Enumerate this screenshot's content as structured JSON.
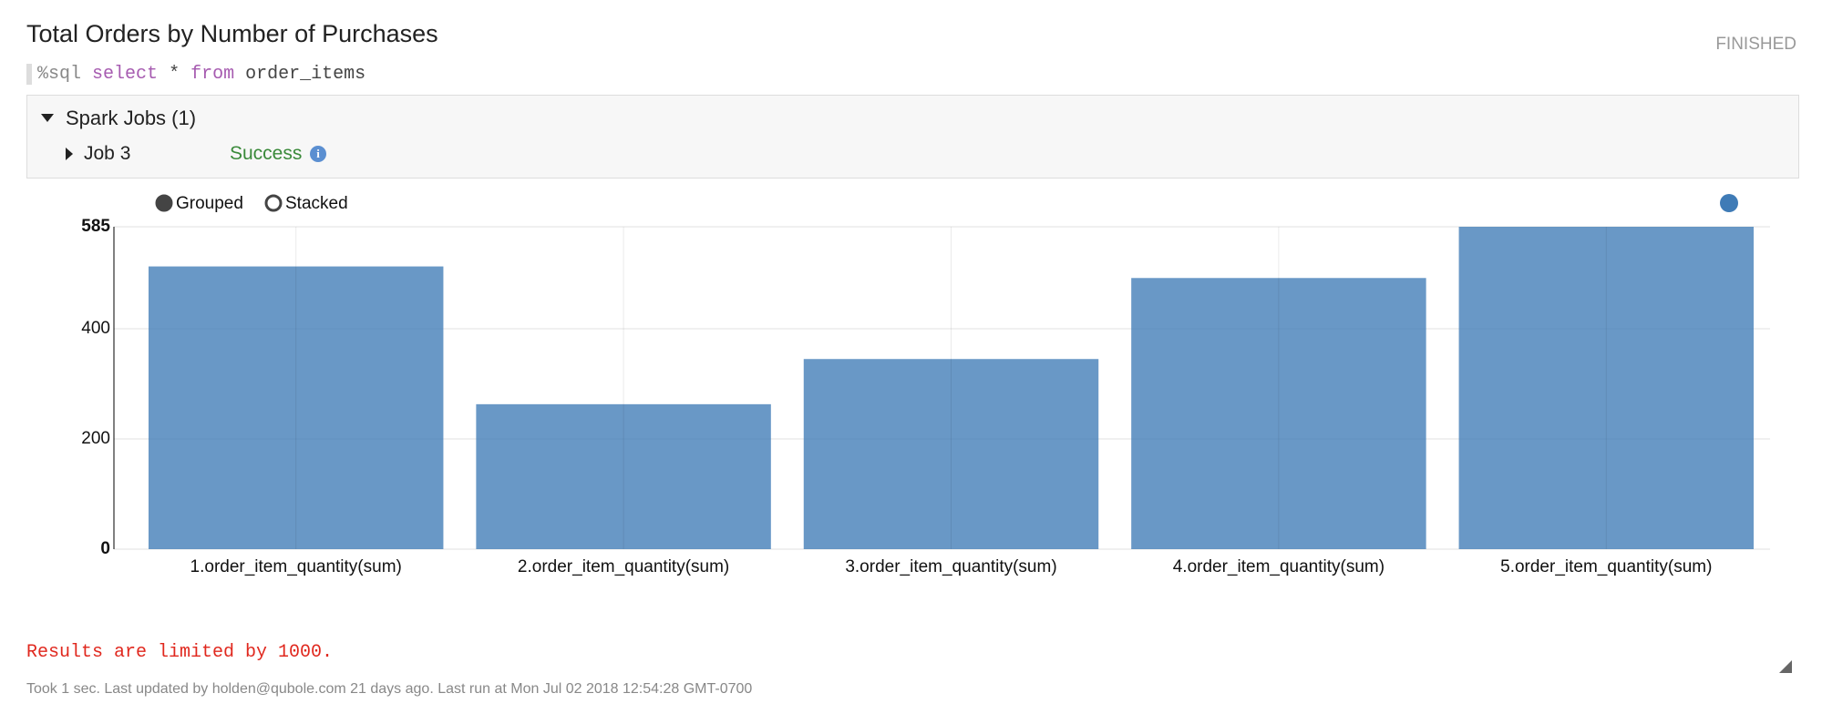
{
  "status": "FINISHED",
  "code": [
    "%sql",
    "select",
    "*",
    "from",
    "order_items"
  ],
  "jobs": {
    "title": "Spark Jobs (1)",
    "items": [
      {
        "name": "Job 3",
        "status": "Success"
      }
    ]
  },
  "modes": [
    "Grouped",
    "Stacked"
  ],
  "chart_data": {
    "type": "bar",
    "title": "Total Orders by Number of Purchases",
    "categories": [
      "1.order_item_quantity(sum)",
      "2.order_item_quantity(sum)",
      "3.order_item_quantity(sum)",
      "4.order_item_quantity(sum)",
      "5.order_item_quantity(sum)"
    ],
    "values": [
      513,
      263,
      345,
      492,
      585
    ],
    "color": "#3f7bb6",
    "ylim": [
      0,
      585
    ],
    "yticks": [
      0,
      200,
      400,
      585
    ],
    "grid": true
  },
  "notice": "Results are limited by 1000.",
  "footer": "Took 1 sec. Last updated by holden@qubole.com 21 days ago. Last run at Mon Jul 02 2018 12:54:28 GMT-0700"
}
